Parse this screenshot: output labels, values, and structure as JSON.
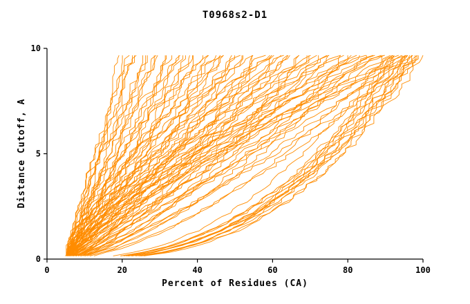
{
  "chart_data": {
    "type": "line",
    "title": "T0968s2-D1",
    "xlabel": "Percent of Residues (CA)",
    "ylabel": "Distance Cutoff, A",
    "xlim": [
      0,
      100
    ],
    "ylim": [
      0,
      10
    ],
    "x_ticks": [
      0,
      20,
      40,
      60,
      80,
      100
    ],
    "y_ticks": [
      0,
      5,
      10
    ],
    "grid": false,
    "legend": "none",
    "line_color": "#FF8C00",
    "axis_color": "#000000",
    "curve_family": {
      "note": "One cumulative distance-cutoff curve per model; each rises from (start_x, 0) to y=top_y, reaching the top at end_x percent of residues.",
      "start_x": 5,
      "top_y": 9.7,
      "end_x": [
        18,
        20,
        21,
        22,
        23,
        24,
        25,
        26,
        27,
        28,
        29,
        30,
        31,
        32,
        33,
        34,
        35,
        36,
        37,
        38,
        39,
        40,
        41,
        42,
        43,
        44,
        45,
        46,
        47,
        48,
        49,
        50,
        51,
        52,
        53,
        54,
        55,
        56,
        57,
        58,
        59,
        60,
        61,
        62,
        63,
        64,
        65,
        66,
        67,
        68,
        69,
        70,
        71,
        72,
        73,
        74,
        75,
        76,
        77,
        78,
        79,
        80,
        81,
        82,
        83,
        84,
        85,
        86,
        87,
        88,
        89,
        90,
        91,
        92,
        93,
        94,
        95,
        96,
        97,
        98,
        99,
        100,
        100,
        99,
        98,
        97,
        96,
        95,
        94,
        93,
        92,
        91,
        90,
        95,
        97,
        99
      ],
      "shape_exponent": [
        0.6,
        0.9,
        1.2,
        0.75,
        1.05,
        1.35,
        0.65,
        0.95,
        1.25,
        0.8,
        1.1,
        1.4,
        0.6,
        0.9,
        1.2,
        0.75,
        1.05,
        1.35,
        0.65,
        0.95,
        1.25,
        0.8,
        1.1,
        1.4,
        0.6,
        0.9,
        1.2,
        0.75,
        1.05,
        1.35,
        0.65,
        0.95,
        1.25,
        0.8,
        1.1,
        1.4,
        0.6,
        0.9,
        1.2,
        0.75,
        1.05,
        1.35,
        0.65,
        0.95,
        1.25,
        0.8,
        1.1,
        1.4,
        0.6,
        0.9,
        1.2,
        0.75,
        1.05,
        1.35,
        0.65,
        0.95,
        1.25,
        0.8,
        1.1,
        1.4,
        0.6,
        0.9,
        1.2,
        0.75,
        1.05,
        1.35,
        0.65,
        0.95,
        1.25,
        0.8,
        1.1,
        1.4,
        0.6,
        0.9,
        1.2,
        0.75,
        1.05,
        1.35,
        0.65,
        0.95,
        1.25,
        0.8,
        0.38,
        0.42,
        0.36,
        0.44,
        0.4,
        0.37,
        0.43,
        0.39,
        0.41,
        0.35,
        0.45,
        0.4,
        0.38,
        0.42
      ]
    }
  }
}
